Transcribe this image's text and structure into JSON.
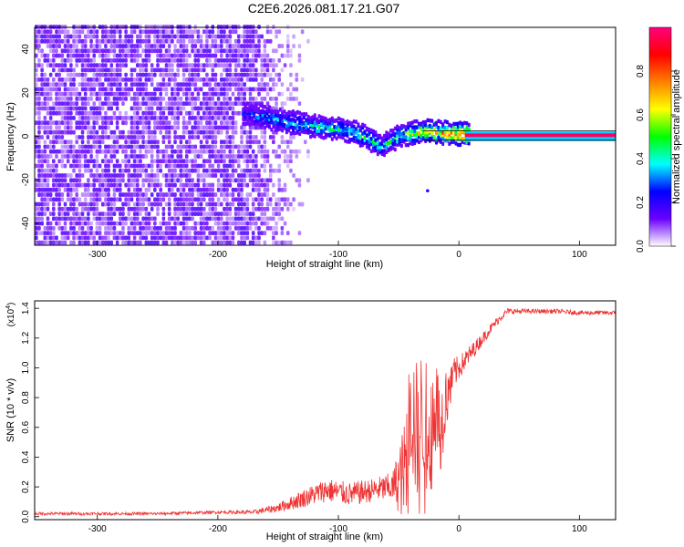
{
  "title": "C2E6.2026.081.17.21.G07",
  "chart_data": [
    {
      "type": "heatmap",
      "panel": "top",
      "xlabel": "Height of straight line (km)",
      "ylabel": "Frequency (Hz)",
      "xlim": [
        -352,
        130
      ],
      "ylim": [
        -50,
        50
      ],
      "xticks": [
        -300,
        -200,
        -100,
        0,
        100
      ],
      "yticks": [
        -40,
        -20,
        0,
        20,
        40
      ],
      "noise_region_end_km": -175,
      "ridge": [
        {
          "x": -180,
          "f": 10,
          "amp": 0.25
        },
        {
          "x": -160,
          "f": 8,
          "amp": 0.35
        },
        {
          "x": -140,
          "f": 6,
          "amp": 0.4
        },
        {
          "x": -120,
          "f": 4,
          "amp": 0.45
        },
        {
          "x": -100,
          "f": 3,
          "amp": 0.45
        },
        {
          "x": -80,
          "f": 0,
          "amp": 0.5
        },
        {
          "x": -65,
          "f": -5,
          "amp": 0.45
        },
        {
          "x": -50,
          "f": 0,
          "amp": 0.5
        },
        {
          "x": -30,
          "f": 2,
          "amp": 0.7
        },
        {
          "x": -10,
          "f": 1,
          "amp": 0.8
        },
        {
          "x": 5,
          "f": 0.5,
          "amp": 0.95
        },
        {
          "x": 130,
          "f": 0.5,
          "amp": 1.0
        }
      ],
      "colorbar": {
        "label": "Normalized spectral amplitude",
        "ticks": [
          0.0,
          0.2,
          0.4,
          0.6,
          0.8
        ],
        "tick_labels": [
          "0.0",
          "0.2",
          "0.4",
          "0.6",
          "0.8"
        ],
        "range": [
          0,
          1
        ],
        "colors": [
          "#ffffff",
          "#6a00ff",
          "#0000ff",
          "#00ffff",
          "#00ff00",
          "#ffff00",
          "#ff8000",
          "#ff0000",
          "#ff0080"
        ]
      }
    },
    {
      "type": "line",
      "panel": "bottom",
      "xlabel": "Height of straight line (km)",
      "ylabel": "SNR (10 * v/v)",
      "y_multiplier": "(x10",
      "y_multiplier_exp": "4",
      "y_multiplier_close": ")",
      "xlim": [
        -352,
        130
      ],
      "ylim": [
        -0.02,
        1.45
      ],
      "xticks": [
        -300,
        -200,
        -100,
        0,
        100
      ],
      "yticks": [
        0.0,
        0.2,
        0.4,
        0.6,
        0.8,
        1.0,
        1.2,
        1.4
      ],
      "ytick_labels": [
        "0.0",
        "0.2",
        "0.4",
        "0.6",
        "0.8",
        "1.0",
        "1.2",
        "1.4"
      ],
      "color": "#ee3333",
      "series": [
        {
          "name": "SNR",
          "x": [
            -352,
            -300,
            -250,
            -200,
            -170,
            -150,
            -130,
            -110,
            -90,
            -70,
            -55,
            -45,
            -40,
            -35,
            -30,
            -25,
            -20,
            -15,
            -10,
            -5,
            0,
            10,
            20,
            30,
            40,
            60,
            80,
            100,
            130
          ],
          "y": [
            0.02,
            0.02,
            0.02,
            0.03,
            0.03,
            0.06,
            0.12,
            0.18,
            0.15,
            0.18,
            0.2,
            0.3,
            0.75,
            0.55,
            0.7,
            0.5,
            0.8,
            0.6,
            0.85,
            0.95,
            1.0,
            1.1,
            1.2,
            1.3,
            1.38,
            1.38,
            1.38,
            1.37,
            1.37
          ],
          "noise": [
            0.01,
            0.01,
            0.01,
            0.01,
            0.015,
            0.03,
            0.06,
            0.08,
            0.08,
            0.08,
            0.1,
            0.35,
            0.45,
            0.5,
            0.45,
            0.45,
            0.35,
            0.3,
            0.2,
            0.12,
            0.08,
            0.06,
            0.04,
            0.03,
            0.02,
            0.015,
            0.015,
            0.015,
            0.015
          ]
        }
      ]
    }
  ]
}
